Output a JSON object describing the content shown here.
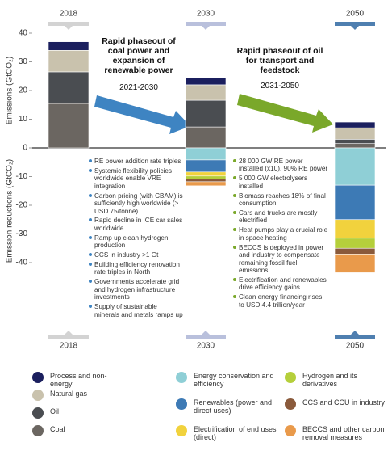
{
  "chart_data": {
    "type": "bar",
    "stacked": true,
    "categories": [
      "2018",
      "2030",
      "2050"
    ],
    "ylabel": "Emissions (GtCO₂)",
    "ylabel_negative": "Emission reductions (GtCO₂)",
    "ylim": [
      -45,
      43
    ],
    "yticks": [
      40,
      30,
      20,
      10,
      0,
      -10,
      -20,
      -30,
      -40
    ],
    "series": [
      {
        "name": "Coal",
        "color": "#6b6661",
        "values": [
          15.5,
          7.3,
          1.5
        ]
      },
      {
        "name": "Oil",
        "color": "#4a4d51",
        "values": [
          11,
          9.3,
          1.5
        ]
      },
      {
        "name": "Natural gas",
        "color": "#c9c2ad",
        "values": [
          7.5,
          5.4,
          4
        ]
      },
      {
        "name": "Process and non-energy",
        "color": "#1b1f5e",
        "values": [
          3,
          2.5,
          2
        ]
      },
      {
        "name": "Energy conservation and efficiency",
        "color": "#8fcfd6",
        "values": [
          null,
          -4.2,
          -13
        ]
      },
      {
        "name": "Renewables (power and direct uses)",
        "color": "#3d7ab5",
        "values": [
          null,
          -4.2,
          -12
        ]
      },
      {
        "name": "Electrification of end uses (direct)",
        "color": "#f1d23d",
        "values": [
          null,
          -1.4,
          -6.5
        ]
      },
      {
        "name": "Hydrogen and its derivatives",
        "color": "#b5cf3b",
        "values": [
          null,
          -1,
          -3.5
        ]
      },
      {
        "name": "CCS and CCU in industry",
        "color": "#8a5a3b",
        "values": [
          null,
          -1,
          -2
        ]
      },
      {
        "name": "BECCS and other carbon removal measures",
        "color": "#e99a4b",
        "values": [
          null,
          -1.4,
          -6.5
        ]
      }
    ],
    "annotations": [
      {
        "text": "Rapid phaseout of coal power and expansion of renewable power",
        "period": "2021-2030",
        "bullets": [
          "RE power addition rate triples",
          "Systemic flexibility policies worldwide enable VRE integration",
          "Carbon pricing (with CBAM) is sufficiently high worldwide (> USD 75/tonne)",
          "Rapid decline in ICE car sales worldwide",
          "Ramp up clean hydrogen production",
          "CCS in industry >1 Gt",
          "Building efficiency renovation rate triples in North",
          "Governments accelerate grid and hydrogen infrastructure investments",
          "Supply of sustainable minerals and metals ramps up"
        ]
      },
      {
        "text": "Rapid phaseout of oil for transport and feedstock",
        "period": "2031-2050",
        "bullets": [
          "28 000 GW RE power installed (x10), 90% RE power",
          "5 000 GW electrolysers installed",
          "Biomass reaches 18% of final consumption",
          "Cars and trucks are mostly electrified",
          "Heat pumps play a crucial role in space heating",
          "BECCS is deployed in power and industry to compensate remaining fossil fuel emissions",
          "Electrification and renewables drive efficiency gains",
          "Clean energy financing rises to USD 4.4 trillion/year"
        ]
      }
    ]
  }
}
